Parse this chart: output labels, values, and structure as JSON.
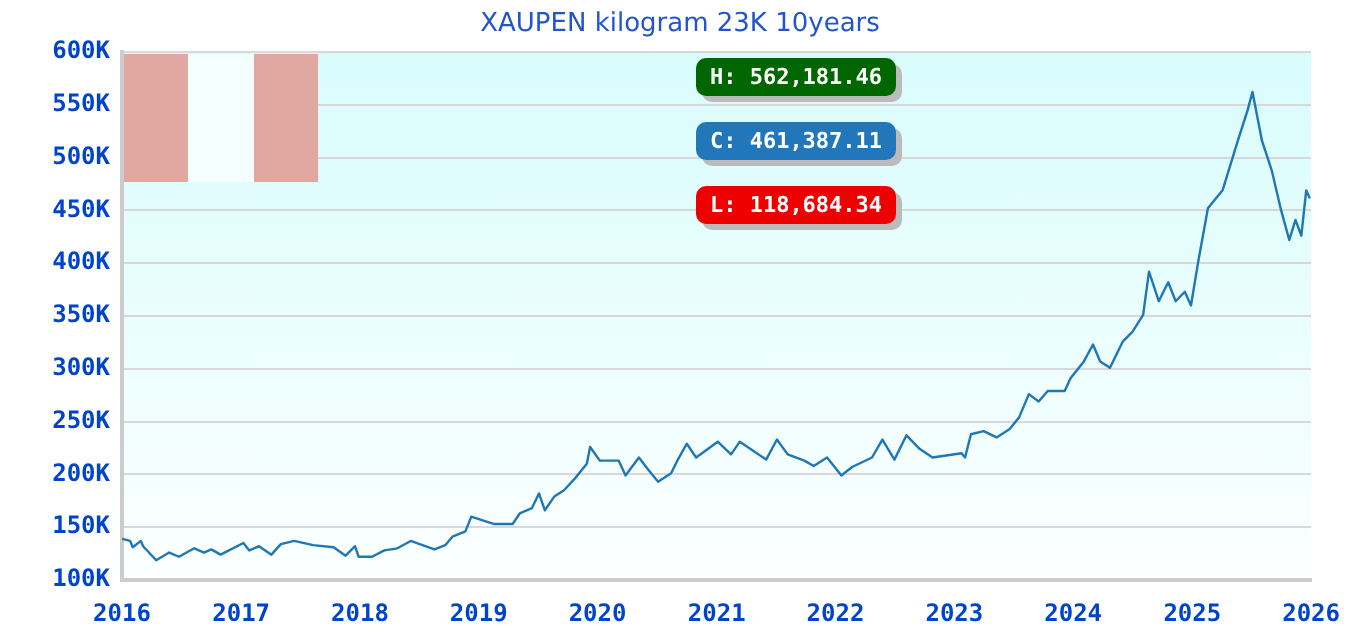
{
  "chart_data": {
    "type": "line",
    "title": "XAUPEN kilogram 23K 10years",
    "x": [
      "2016-01-01",
      "2016-01-26",
      "2016-02-03",
      "2016-02-28",
      "2016-03-06",
      "2016-04-15",
      "2016-05-25",
      "2016-06-24",
      "2016-08-10",
      "2016-09-09",
      "2016-10-01",
      "2016-10-30",
      "2017-01-08",
      "2017-01-26",
      "2017-02-25",
      "2017-04-04",
      "2017-05-03",
      "2017-06-13",
      "2017-08-10",
      "2017-10-12",
      "2017-11-18",
      "2017-12-17",
      "2017-12-28",
      "2018-02-07",
      "2018-03-17",
      "2018-04-26",
      "2018-06-06",
      "2018-07-12",
      "2018-08-18",
      "2018-09-20",
      "2018-10-12",
      "2018-11-21",
      "2018-12-09",
      "2019-01-08",
      "2019-02-18",
      "2019-04-15",
      "2019-05-07",
      "2019-06-13",
      "2019-07-05",
      "2019-07-23",
      "2019-08-21",
      "2019-09-20",
      "2019-10-23",
      "2019-11-29",
      "2019-12-09",
      "2020-01-08",
      "2020-03-06",
      "2020-03-27",
      "2020-05-07",
      "2020-06-06",
      "2020-07-05",
      "2020-08-14",
      "2020-09-02",
      "2020-10-01",
      "2020-10-30",
      "2021-01-04",
      "2021-02-14",
      "2021-03-13",
      "2021-06-02",
      "2021-07-05",
      "2021-08-07",
      "2021-09-27",
      "2021-10-26",
      "2021-12-06",
      "2022-01-19",
      "2022-02-21",
      "2022-04-23",
      "2022-05-25",
      "2022-07-01",
      "2022-08-07",
      "2022-09-17",
      "2022-10-26",
      "2023-01-23",
      "2023-02-03",
      "2023-02-21",
      "2023-04-01",
      "2023-05-11",
      "2023-06-20",
      "2023-07-19",
      "2023-08-18",
      "2023-09-17",
      "2023-10-15",
      "2023-12-06",
      "2023-12-24",
      "2024-02-03",
      "2024-03-02",
      "2024-03-24",
      "2024-04-23",
      "2024-06-02",
      "2024-07-01",
      "2024-08-03",
      "2024-08-21",
      "2024-09-20",
      "2024-10-19",
      "2024-11-11",
      "2024-12-09",
      "2024-12-28",
      "2025-01-19",
      "2025-02-18",
      "2025-04-04",
      "2025-05-21",
      "2025-06-20",
      "2025-07-05",
      "2025-08-03",
      "2025-09-02",
      "2025-10-01",
      "2025-10-26",
      "2025-11-14",
      "2025-12-02",
      "2025-12-17",
      "2025-12-28"
    ],
    "series": [
      {
        "color": "#1f77b4",
        "values": [
          139000,
          137000,
          131000,
          137000,
          132000,
          118684.34,
          126000,
          122000,
          130000,
          126000,
          129000,
          124000,
          135000,
          128000,
          132000,
          124000,
          134000,
          137000,
          133000,
          131000,
          123000,
          132000,
          122000,
          122000,
          128000,
          130000,
          137000,
          133000,
          129000,
          133000,
          141000,
          146000,
          160000,
          157000,
          153000,
          153000,
          163000,
          168000,
          182000,
          166000,
          179000,
          185000,
          196000,
          210000,
          226000,
          213000,
          213000,
          199000,
          216000,
          204000,
          193000,
          201000,
          213000,
          229000,
          216000,
          231000,
          219000,
          231000,
          214000,
          233000,
          219000,
          213000,
          208000,
          216000,
          199000,
          207000,
          216000,
          233000,
          214000,
          237000,
          224000,
          216000,
          220000,
          216000,
          238000,
          241000,
          235000,
          243000,
          254000,
          276000,
          269000,
          279000,
          279000,
          291000,
          307000,
          323000,
          307000,
          301000,
          326000,
          335000,
          351000,
          392000,
          364000,
          382000,
          364000,
          373000,
          360000,
          401000,
          452000,
          469000,
          516000,
          545000,
          562181.46,
          516000,
          488000,
          450000,
          422000,
          441000,
          426000,
          469000,
          461387.11
        ]
      }
    ],
    "xlim": [
      "2016",
      "2026"
    ],
    "xticks": [
      "2016",
      "2017",
      "2018",
      "2019",
      "2020",
      "2021",
      "2022",
      "2023",
      "2024",
      "2025",
      "2026"
    ],
    "ylim": [
      100000,
      600000
    ],
    "yticks": [
      {
        "value": 100000,
        "label": "100K"
      },
      {
        "value": 150000,
        "label": "150K"
      },
      {
        "value": 200000,
        "label": "200K"
      },
      {
        "value": 250000,
        "label": "250K"
      },
      {
        "value": 300000,
        "label": "300K"
      },
      {
        "value": 350000,
        "label": "350K"
      },
      {
        "value": 400000,
        "label": "400K"
      },
      {
        "value": 450000,
        "label": "450K"
      },
      {
        "value": 500000,
        "label": "500K"
      },
      {
        "value": 550000,
        "label": "550K"
      },
      {
        "value": 600000,
        "label": "600K"
      }
    ],
    "grid": "y",
    "legend": false,
    "marker": "none",
    "line_style": "solid",
    "annotations": [
      "H: 562,181.46",
      "C: 461,387.11",
      "L: 118,684.34"
    ]
  }
}
